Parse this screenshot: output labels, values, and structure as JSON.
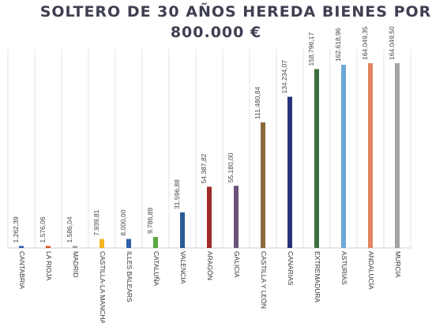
{
  "chart_data": {
    "type": "bar",
    "title_line1": "SOLTERO DE 30 AÑOS HEREDA BIENES POR",
    "title_line2": "800.000 €",
    "categories": [
      "CANTABRIA",
      "LA RIOJA",
      "MADRID",
      "CASTILLA-LA MANCHA",
      "ILLES BALEARS",
      "CATALUÑA",
      "VALENCIA",
      "ARAGÓN",
      "GALICIA",
      "CASTILLA Y LEÓN",
      "CANARIAS",
      "EXTREMADURA",
      "ASTURIAS",
      "ANDALUCÍA",
      "MURCIA"
    ],
    "values": [
      1262.39,
      1576.06,
      1586.04,
      7939.81,
      8000.0,
      9786.89,
      31596.88,
      54387.82,
      55180.0,
      111480.84,
      134234.07,
      158796.17,
      162618.96,
      164049.35,
      164049.5
    ],
    "value_labels": [
      "1.262,39",
      "1.576,06",
      "1.586,04",
      "7.939,81",
      "8.000,00",
      "9.786,89",
      "31.596,88",
      "54.387,82",
      "55.180,00",
      "111.480,84",
      "134.234,07",
      "158.796,17",
      "162.618,96",
      "164.049,35",
      "164.049,50"
    ],
    "colors": [
      "#2e5fa8",
      "#d9502a",
      "#9e9e9e",
      "#f2b620",
      "#2e5fa8",
      "#5aa641",
      "#2a5a96",
      "#a22a2a",
      "#6b5278",
      "#8c6a3e",
      "#27347a",
      "#3d6e3d",
      "#6aa8d6",
      "#e08563",
      "#a3a3a3"
    ],
    "grid": "vertical",
    "legend": "none"
  }
}
